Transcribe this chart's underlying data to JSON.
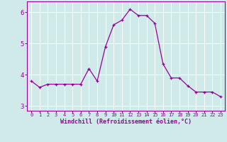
{
  "x": [
    0,
    1,
    2,
    3,
    4,
    5,
    6,
    7,
    8,
    9,
    10,
    11,
    12,
    13,
    14,
    15,
    16,
    17,
    18,
    19,
    20,
    21,
    22,
    23
  ],
  "y": [
    3.8,
    3.6,
    3.7,
    3.7,
    3.7,
    3.7,
    3.7,
    4.2,
    3.8,
    4.9,
    5.6,
    5.75,
    6.1,
    5.9,
    5.9,
    5.65,
    4.35,
    3.9,
    3.9,
    3.65,
    3.45,
    3.45,
    3.45,
    3.3
  ],
  "line_color": "#990099",
  "marker": "+",
  "bg_color": "#d0eaea",
  "grid_color": "#ffffff",
  "xlabel": "Windchill (Refroidissement éolien,°C)",
  "xlabel_color": "#990099",
  "tick_color": "#990099",
  "spine_color": "#990099",
  "xlim": [
    -0.5,
    23.5
  ],
  "ylim": [
    2.85,
    6.35
  ],
  "yticks": [
    3,
    4,
    5,
    6
  ],
  "xticks": [
    0,
    1,
    2,
    3,
    4,
    5,
    6,
    7,
    8,
    9,
    10,
    11,
    12,
    13,
    14,
    15,
    16,
    17,
    18,
    19,
    20,
    21,
    22,
    23
  ],
  "figsize": [
    3.2,
    2.0
  ],
  "dpi": 100
}
